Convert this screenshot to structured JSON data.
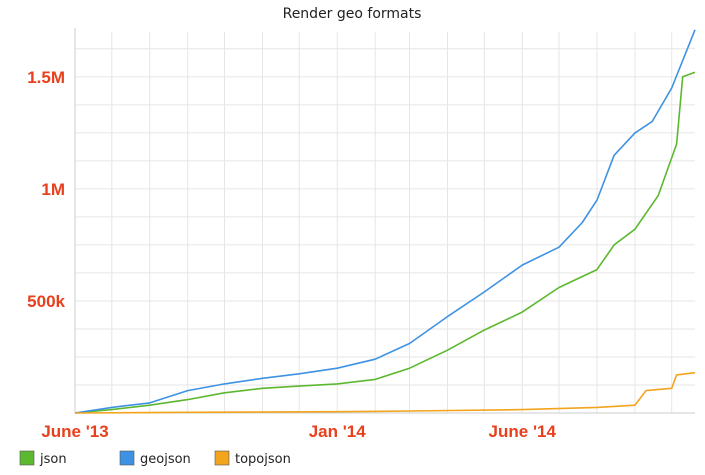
{
  "chart_data": {
    "type": "line",
    "title": "Render geo formats",
    "xlabel": "",
    "ylabel": "",
    "x_start": "2013-06",
    "x_ticks": [
      {
        "date": "2013-06",
        "label": "June '13"
      },
      {
        "date": "2014-01",
        "label": "Jan '14"
      },
      {
        "date": "2014-06",
        "label": "June '14"
      }
    ],
    "y_ticks": [
      {
        "value": 500000,
        "label": "500k"
      },
      {
        "value": 1000000,
        "label": "1M"
      },
      {
        "value": 1500000,
        "label": "1.5M"
      }
    ],
    "ylim": [
      0,
      1700000
    ],
    "xlim": [
      "2013-06-01",
      "2014-10-20"
    ],
    "tick_label_color": "#e8401c",
    "grid": true,
    "legend_position": "bottom-left",
    "series": [
      {
        "name": "json",
        "color": "#5cb82e",
        "points": [
          [
            "2013-06-01",
            0
          ],
          [
            "2013-07-01",
            15000
          ],
          [
            "2013-08-01",
            35000
          ],
          [
            "2013-09-01",
            60000
          ],
          [
            "2013-10-01",
            90000
          ],
          [
            "2013-11-01",
            110000
          ],
          [
            "2013-12-01",
            120000
          ],
          [
            "2014-01-01",
            130000
          ],
          [
            "2014-02-01",
            150000
          ],
          [
            "2014-03-01",
            200000
          ],
          [
            "2014-04-01",
            280000
          ],
          [
            "2014-05-01",
            370000
          ],
          [
            "2014-06-01",
            450000
          ],
          [
            "2014-07-01",
            560000
          ],
          [
            "2014-08-01",
            640000
          ],
          [
            "2014-08-15",
            750000
          ],
          [
            "2014-09-01",
            820000
          ],
          [
            "2014-09-20",
            970000
          ],
          [
            "2014-10-05",
            1200000
          ],
          [
            "2014-10-10",
            1500000
          ],
          [
            "2014-10-20",
            1520000
          ]
        ]
      },
      {
        "name": "geojson",
        "color": "#3e92e3",
        "points": [
          [
            "2013-06-01",
            0
          ],
          [
            "2013-07-01",
            25000
          ],
          [
            "2013-08-01",
            45000
          ],
          [
            "2013-09-01",
            100000
          ],
          [
            "2013-10-01",
            130000
          ],
          [
            "2013-11-01",
            155000
          ],
          [
            "2013-12-01",
            175000
          ],
          [
            "2014-01-01",
            200000
          ],
          [
            "2014-02-01",
            240000
          ],
          [
            "2014-03-01",
            310000
          ],
          [
            "2014-04-01",
            430000
          ],
          [
            "2014-05-01",
            540000
          ],
          [
            "2014-06-01",
            660000
          ],
          [
            "2014-07-01",
            740000
          ],
          [
            "2014-07-20",
            850000
          ],
          [
            "2014-08-01",
            950000
          ],
          [
            "2014-08-15",
            1150000
          ],
          [
            "2014-09-01",
            1250000
          ],
          [
            "2014-09-15",
            1300000
          ],
          [
            "2014-10-01",
            1450000
          ],
          [
            "2014-10-20",
            1710000
          ]
        ]
      },
      {
        "name": "topojson",
        "color": "#f2a41d",
        "points": [
          [
            "2013-06-01",
            0
          ],
          [
            "2013-09-01",
            3000
          ],
          [
            "2014-01-01",
            6000
          ],
          [
            "2014-03-01",
            9000
          ],
          [
            "2014-06-01",
            15000
          ],
          [
            "2014-08-01",
            25000
          ],
          [
            "2014-09-01",
            35000
          ],
          [
            "2014-09-10",
            100000
          ],
          [
            "2014-10-01",
            110000
          ],
          [
            "2014-10-05",
            170000
          ],
          [
            "2014-10-20",
            180000
          ]
        ]
      }
    ]
  }
}
